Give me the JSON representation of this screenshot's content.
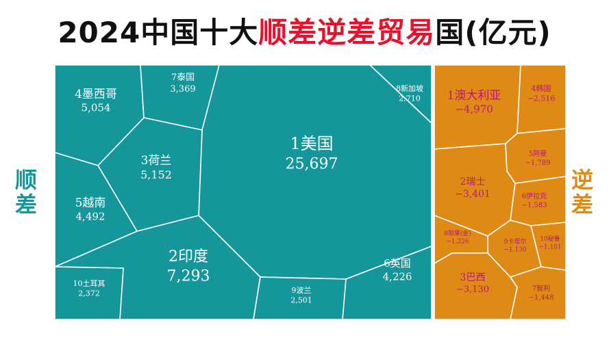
{
  "title": {
    "prefix": "2024中国十大",
    "highlight": "顺差逆差贸易",
    "suffix": "国(亿元)"
  },
  "side_labels": {
    "surplus": "顺差",
    "deficit": "逆差"
  },
  "colors": {
    "surplus_fill": "#14969a",
    "deficit_fill": "#e08a16",
    "border": "#ffffff",
    "deficit_text": "#b8196e",
    "surplus_side_text": "#14969a",
    "deficit_side_text": "#e08a16",
    "title_highlight": "#e8102a"
  },
  "chart_data": {
    "type": "voronoi-treemap",
    "unit": "亿元",
    "groups": [
      {
        "name": "顺差",
        "cells": [
          {
            "label": "1美国",
            "value": 25697,
            "display": "25,697"
          },
          {
            "label": "2印度",
            "value": 7293,
            "display": "7,293"
          },
          {
            "label": "3荷兰",
            "value": 5152,
            "display": "5,152"
          },
          {
            "label": "4墨西哥",
            "value": 5054,
            "display": "5,054"
          },
          {
            "label": "5越南",
            "value": 4492,
            "display": "4,492"
          },
          {
            "label": "6英国",
            "value": 4226,
            "display": "4,226"
          },
          {
            "label": "7泰国",
            "value": 3369,
            "display": "3,369"
          },
          {
            "label": "8新加坡",
            "value": 2710,
            "display": "2,710"
          },
          {
            "label": "9波兰",
            "value": 2501,
            "display": "2,501"
          },
          {
            "label": "10土耳其",
            "value": 2372,
            "display": "2,372"
          }
        ]
      },
      {
        "name": "逆差",
        "cells": [
          {
            "label": "1澳大利亚",
            "value": -4970,
            "display": "−4,970"
          },
          {
            "label": "2瑞士",
            "value": -3401,
            "display": "−3,401"
          },
          {
            "label": "3巴西",
            "value": -3130,
            "display": "−3,130"
          },
          {
            "label": "4韩国",
            "value": -2516,
            "display": "−2,516"
          },
          {
            "label": "5阿曼",
            "value": -1789,
            "display": "−1,789"
          },
          {
            "label": "6伊拉克",
            "value": -1583,
            "display": "−1,583"
          },
          {
            "label": "7智利",
            "value": -1448,
            "display": "−1,448"
          },
          {
            "label": "8刚果(金)",
            "value": -1226,
            "display": "−1,226"
          },
          {
            "label": "9卡塔尔",
            "value": -1130,
            "display": "−1,130"
          },
          {
            "label": "10秘鲁",
            "value": -1101,
            "display": "−1,101"
          }
        ]
      }
    ]
  }
}
